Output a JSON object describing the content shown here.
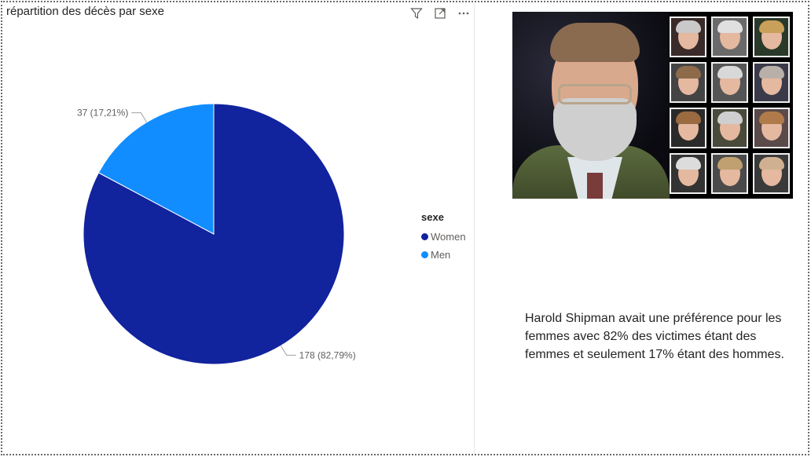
{
  "visual": {
    "title": "répartition des décès par sexe"
  },
  "header_icons": [
    "filter-icon",
    "focus-mode-icon",
    "more-options-icon"
  ],
  "chart_data": {
    "type": "pie",
    "title": "répartition des décès par sexe",
    "legend_title": "sexe",
    "legend_position": "right",
    "slices": [
      {
        "name": "Women",
        "value": 178,
        "percent_label": "178 (82,79%)",
        "color": "#12239e"
      },
      {
        "name": "Men",
        "value": 37,
        "percent_label": "37 (17,21%)",
        "color": "#118dff"
      }
    ]
  },
  "note": {
    "text": "Harold Shipman avait une préférence pour les femmes avec 82% des victimes étant des femmes et seulement 17% étant des hommes."
  }
}
